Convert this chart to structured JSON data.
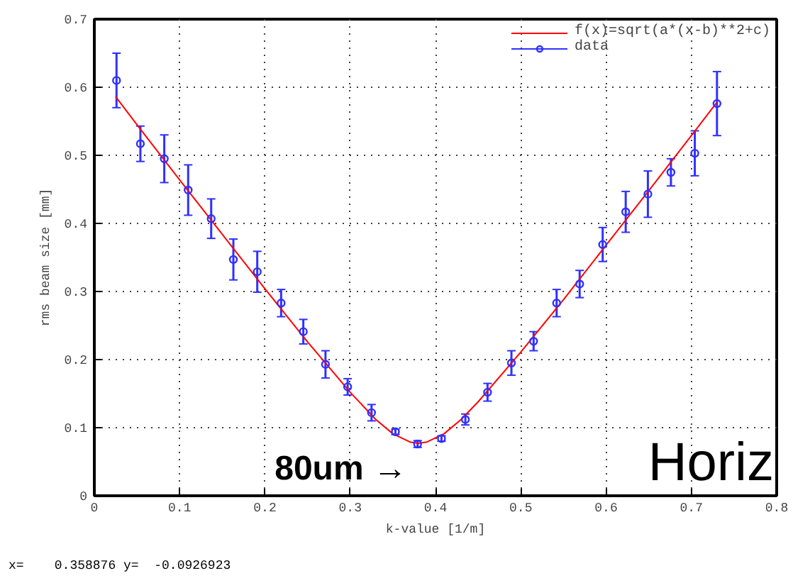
{
  "chart_data": {
    "type": "scatter",
    "xlabel": "k-value [1/m]",
    "ylabel": "rms beam size [mm]",
    "xlim": [
      0,
      0.8
    ],
    "ylim": [
      0,
      0.7
    ],
    "xticks": [
      0,
      0.1,
      0.2,
      0.3,
      0.4,
      0.5,
      0.6,
      0.7,
      0.8
    ],
    "yticks": [
      0,
      0.1,
      0.2,
      0.3,
      0.4,
      0.5,
      0.6,
      0.7
    ],
    "grid": true,
    "legend": "top right",
    "marker": "circle",
    "series": [
      {
        "name": "f(x)=sqrt(a*(x-b)**2+c)",
        "type": "line",
        "color": "#ff0000",
        "line_style": "solid",
        "marker": "none",
        "x": [
          0.025,
          0.05,
          0.1,
          0.15,
          0.2,
          0.25,
          0.3,
          0.33,
          0.35,
          0.37,
          0.38,
          0.39,
          0.41,
          0.43,
          0.45,
          0.5,
          0.55,
          0.6,
          0.65,
          0.7,
          0.73
        ],
        "values": [
          0.586,
          0.545,
          0.464,
          0.384,
          0.304,
          0.226,
          0.152,
          0.112,
          0.091,
          0.079,
          0.077,
          0.079,
          0.091,
          0.112,
          0.138,
          0.211,
          0.288,
          0.368,
          0.448,
          0.529,
          0.578
        ]
      },
      {
        "name": "data",
        "color": "#3030ff",
        "x": [
          0.026,
          0.054,
          0.082,
          0.11,
          0.137,
          0.163,
          0.191,
          0.219,
          0.245,
          0.271,
          0.297,
          0.325,
          0.353,
          0.379,
          0.407,
          0.435,
          0.461,
          0.489,
          0.515,
          0.542,
          0.569,
          0.596,
          0.623,
          0.649,
          0.676,
          0.704,
          0.73
        ],
        "values": [
          0.61,
          0.517,
          0.495,
          0.449,
          0.407,
          0.347,
          0.329,
          0.283,
          0.241,
          0.193,
          0.16,
          0.122,
          0.094,
          0.076,
          0.084,
          0.112,
          0.152,
          0.195,
          0.227,
          0.283,
          0.311,
          0.369,
          0.417,
          0.443,
          0.475,
          0.503,
          0.576
        ],
        "errors": [
          0.04,
          0.026,
          0.035,
          0.037,
          0.029,
          0.03,
          0.03,
          0.02,
          0.018,
          0.02,
          0.012,
          0.012,
          0.004,
          0.005,
          0.004,
          0.008,
          0.013,
          0.018,
          0.014,
          0.02,
          0.02,
          0.025,
          0.03,
          0.034,
          0.02,
          0.033,
          0.047
        ]
      }
    ],
    "annotations": [
      {
        "text": "80um →",
        "x": 0.38,
        "y": 0.076
      },
      "Horiz",
      "x=    0.358876 y=  -0.0926923"
    ]
  }
}
